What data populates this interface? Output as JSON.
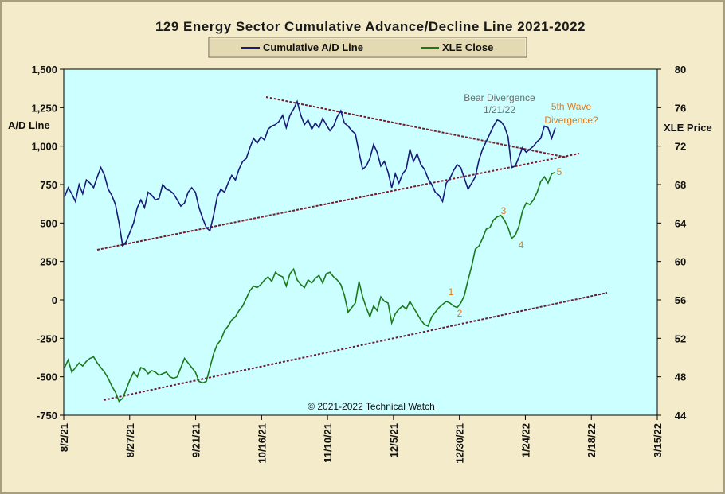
{
  "chart_data": {
    "type": "line",
    "title": "129 Energy Sector Cumulative Advance/Decline Line 2021-2022",
    "ylabel_left": "A/D Line",
    "ylabel_right": "XLE Price",
    "copyright": "© 2021-2022  Technical Watch",
    "left_axis": {
      "ylim": [
        -750,
        1500
      ],
      "ticks": [
        "1,500",
        "1,250",
        "1,000",
        "750",
        "500",
        "250",
        "0",
        "-250",
        "-500",
        "-750"
      ]
    },
    "right_axis": {
      "ylim": [
        44,
        80
      ],
      "ticks": [
        "80",
        "76",
        "72",
        "68",
        "64",
        "60",
        "56",
        "52",
        "48",
        "44"
      ]
    },
    "x_tick_labels": [
      "8/2/21",
      "8/27/21",
      "9/21/21",
      "10/16/21",
      "11/10/21",
      "12/5/21",
      "12/30/21",
      "1/24/22",
      "2/18/22",
      "3/15/22"
    ],
    "legend": [
      {
        "name": "Cumulative A/D Line",
        "color": "#1a1a7a"
      },
      {
        "name": "XLE Close",
        "color": "#1a7a1a"
      }
    ],
    "colors": {
      "background": "#ccffff",
      "trendline": "#7a1a2a",
      "annotation_gray": "#6b6b6b",
      "annotation_orange": "#e07a1c"
    },
    "series": [
      {
        "name": "Cumulative A/D Line",
        "axis": "left",
        "points": [
          [
            0,
            670
          ],
          [
            1,
            730
          ],
          [
            2,
            690
          ],
          [
            3,
            640
          ],
          [
            4,
            750
          ],
          [
            5,
            690
          ],
          [
            6,
            780
          ],
          [
            7,
            760
          ],
          [
            8,
            730
          ],
          [
            9,
            800
          ],
          [
            10,
            860
          ],
          [
            11,
            810
          ],
          [
            12,
            720
          ],
          [
            13,
            680
          ],
          [
            14,
            620
          ],
          [
            15,
            500
          ],
          [
            16,
            350
          ],
          [
            17,
            380
          ],
          [
            18,
            440
          ],
          [
            19,
            500
          ],
          [
            20,
            600
          ],
          [
            21,
            650
          ],
          [
            22,
            600
          ],
          [
            23,
            700
          ],
          [
            24,
            680
          ],
          [
            25,
            650
          ],
          [
            26,
            660
          ],
          [
            27,
            750
          ],
          [
            28,
            720
          ],
          [
            29,
            710
          ],
          [
            30,
            690
          ],
          [
            31,
            650
          ],
          [
            32,
            610
          ],
          [
            33,
            630
          ],
          [
            34,
            700
          ],
          [
            35,
            730
          ],
          [
            36,
            700
          ],
          [
            37,
            600
          ],
          [
            38,
            530
          ],
          [
            39,
            470
          ],
          [
            40,
            450
          ],
          [
            41,
            550
          ],
          [
            42,
            670
          ],
          [
            43,
            720
          ],
          [
            44,
            700
          ],
          [
            45,
            760
          ],
          [
            46,
            810
          ],
          [
            47,
            780
          ],
          [
            48,
            850
          ],
          [
            49,
            900
          ],
          [
            50,
            920
          ],
          [
            51,
            990
          ],
          [
            52,
            1050
          ],
          [
            53,
            1020
          ],
          [
            54,
            1060
          ],
          [
            55,
            1040
          ],
          [
            56,
            1110
          ],
          [
            57,
            1130
          ],
          [
            58,
            1140
          ],
          [
            59,
            1160
          ],
          [
            60,
            1200
          ],
          [
            61,
            1120
          ],
          [
            62,
            1200
          ],
          [
            63,
            1240
          ],
          [
            64,
            1290
          ],
          [
            65,
            1200
          ],
          [
            66,
            1140
          ],
          [
            67,
            1170
          ],
          [
            68,
            1110
          ],
          [
            69,
            1150
          ],
          [
            70,
            1120
          ],
          [
            71,
            1180
          ],
          [
            72,
            1140
          ],
          [
            73,
            1100
          ],
          [
            74,
            1130
          ],
          [
            75,
            1190
          ],
          [
            76,
            1230
          ],
          [
            77,
            1150
          ],
          [
            78,
            1130
          ],
          [
            79,
            1100
          ],
          [
            80,
            1080
          ],
          [
            81,
            960
          ],
          [
            82,
            850
          ],
          [
            83,
            870
          ],
          [
            84,
            920
          ],
          [
            85,
            1010
          ],
          [
            86,
            960
          ],
          [
            87,
            870
          ],
          [
            88,
            900
          ],
          [
            89,
            830
          ],
          [
            90,
            730
          ],
          [
            91,
            820
          ],
          [
            92,
            760
          ],
          [
            93,
            820
          ],
          [
            94,
            850
          ],
          [
            95,
            980
          ],
          [
            96,
            900
          ],
          [
            97,
            950
          ],
          [
            98,
            880
          ],
          [
            99,
            850
          ],
          [
            100,
            790
          ],
          [
            101,
            750
          ],
          [
            102,
            700
          ],
          [
            103,
            680
          ],
          [
            104,
            640
          ],
          [
            105,
            760
          ],
          [
            106,
            790
          ],
          [
            107,
            840
          ],
          [
            108,
            880
          ],
          [
            109,
            860
          ],
          [
            110,
            790
          ],
          [
            111,
            720
          ],
          [
            112,
            760
          ],
          [
            113,
            800
          ],
          [
            114,
            910
          ],
          [
            115,
            980
          ],
          [
            116,
            1030
          ],
          [
            117,
            1080
          ],
          [
            118,
            1130
          ],
          [
            119,
            1170
          ],
          [
            120,
            1160
          ],
          [
            121,
            1130
          ],
          [
            122,
            1060
          ],
          [
            123,
            860
          ],
          [
            124,
            870
          ],
          [
            125,
            930
          ],
          [
            126,
            990
          ],
          [
            127,
            960
          ],
          [
            128,
            980
          ],
          [
            129,
            1000
          ],
          [
            130,
            1030
          ],
          [
            131,
            1050
          ],
          [
            132,
            1130
          ],
          [
            133,
            1120
          ],
          [
            134,
            1050
          ],
          [
            135,
            1120
          ]
        ]
      },
      {
        "name": "XLE Close",
        "axis": "left",
        "points": [
          [
            0,
            -440
          ],
          [
            1,
            -390
          ],
          [
            2,
            -470
          ],
          [
            3,
            -440
          ],
          [
            4,
            -410
          ],
          [
            5,
            -430
          ],
          [
            6,
            -400
          ],
          [
            7,
            -380
          ],
          [
            8,
            -370
          ],
          [
            9,
            -410
          ],
          [
            10,
            -440
          ],
          [
            11,
            -470
          ],
          [
            12,
            -510
          ],
          [
            13,
            -560
          ],
          [
            14,
            -600
          ],
          [
            15,
            -660
          ],
          [
            16,
            -640
          ],
          [
            17,
            -580
          ],
          [
            18,
            -520
          ],
          [
            19,
            -470
          ],
          [
            20,
            -500
          ],
          [
            21,
            -440
          ],
          [
            22,
            -450
          ],
          [
            23,
            -480
          ],
          [
            24,
            -460
          ],
          [
            25,
            -470
          ],
          [
            26,
            -490
          ],
          [
            27,
            -480
          ],
          [
            28,
            -470
          ],
          [
            29,
            -500
          ],
          [
            30,
            -510
          ],
          [
            31,
            -500
          ],
          [
            32,
            -440
          ],
          [
            33,
            -380
          ],
          [
            34,
            -410
          ],
          [
            35,
            -440
          ],
          [
            36,
            -470
          ],
          [
            37,
            -530
          ],
          [
            38,
            -540
          ],
          [
            39,
            -530
          ],
          [
            40,
            -440
          ],
          [
            41,
            -350
          ],
          [
            42,
            -290
          ],
          [
            43,
            -260
          ],
          [
            44,
            -200
          ],
          [
            45,
            -170
          ],
          [
            46,
            -130
          ],
          [
            47,
            -110
          ],
          [
            48,
            -70
          ],
          [
            49,
            -40
          ],
          [
            50,
            10
          ],
          [
            51,
            60
          ],
          [
            52,
            90
          ],
          [
            53,
            80
          ],
          [
            54,
            100
          ],
          [
            55,
            130
          ],
          [
            56,
            150
          ],
          [
            57,
            120
          ],
          [
            58,
            180
          ],
          [
            59,
            160
          ],
          [
            60,
            150
          ],
          [
            61,
            90
          ],
          [
            62,
            170
          ],
          [
            63,
            200
          ],
          [
            64,
            130
          ],
          [
            65,
            100
          ],
          [
            66,
            80
          ],
          [
            67,
            130
          ],
          [
            68,
            110
          ],
          [
            69,
            140
          ],
          [
            70,
            160
          ],
          [
            71,
            110
          ],
          [
            72,
            170
          ],
          [
            73,
            180
          ],
          [
            74,
            150
          ],
          [
            75,
            130
          ],
          [
            76,
            100
          ],
          [
            77,
            30
          ],
          [
            78,
            -80
          ],
          [
            79,
            -50
          ],
          [
            80,
            -20
          ],
          [
            81,
            120
          ],
          [
            82,
            20
          ],
          [
            83,
            -50
          ],
          [
            84,
            -110
          ],
          [
            85,
            -40
          ],
          [
            86,
            -70
          ],
          [
            87,
            20
          ],
          [
            88,
            -10
          ],
          [
            89,
            -20
          ],
          [
            90,
            -150
          ],
          [
            91,
            -90
          ],
          [
            92,
            -60
          ],
          [
            93,
            -40
          ],
          [
            94,
            -60
          ],
          [
            95,
            -10
          ],
          [
            96,
            -50
          ],
          [
            97,
            -90
          ],
          [
            98,
            -130
          ],
          [
            99,
            -160
          ],
          [
            100,
            -170
          ],
          [
            101,
            -110
          ],
          [
            102,
            -80
          ],
          [
            103,
            -50
          ],
          [
            104,
            -30
          ],
          [
            105,
            -10
          ],
          [
            106,
            -20
          ],
          [
            107,
            -40
          ],
          [
            108,
            -50
          ],
          [
            109,
            -20
          ],
          [
            110,
            30
          ],
          [
            111,
            130
          ],
          [
            112,
            220
          ],
          [
            113,
            330
          ],
          [
            114,
            350
          ],
          [
            115,
            400
          ],
          [
            116,
            460
          ],
          [
            117,
            470
          ],
          [
            118,
            520
          ],
          [
            119,
            540
          ],
          [
            120,
            550
          ],
          [
            121,
            520
          ],
          [
            122,
            470
          ],
          [
            123,
            400
          ],
          [
            124,
            420
          ],
          [
            125,
            480
          ],
          [
            126,
            580
          ],
          [
            127,
            630
          ],
          [
            128,
            620
          ],
          [
            129,
            650
          ],
          [
            130,
            700
          ],
          [
            131,
            770
          ],
          [
            132,
            800
          ],
          [
            133,
            760
          ],
          [
            134,
            820
          ],
          [
            135,
            830
          ]
        ]
      }
    ],
    "annotations": [
      {
        "text": "Bear Divergence",
        "color": "gray"
      },
      {
        "text": "1/21/22",
        "color": "gray"
      },
      {
        "text": "5th Wave",
        "color": "orange"
      },
      {
        "text": "Divergence?",
        "color": "orange"
      },
      {
        "text": "1",
        "color": "orange"
      },
      {
        "text": "2",
        "color": "orange"
      },
      {
        "text": "3",
        "color": "orange"
      },
      {
        "text": "4",
        "color": "orange"
      },
      {
        "text": "5",
        "color": "orange"
      }
    ]
  }
}
